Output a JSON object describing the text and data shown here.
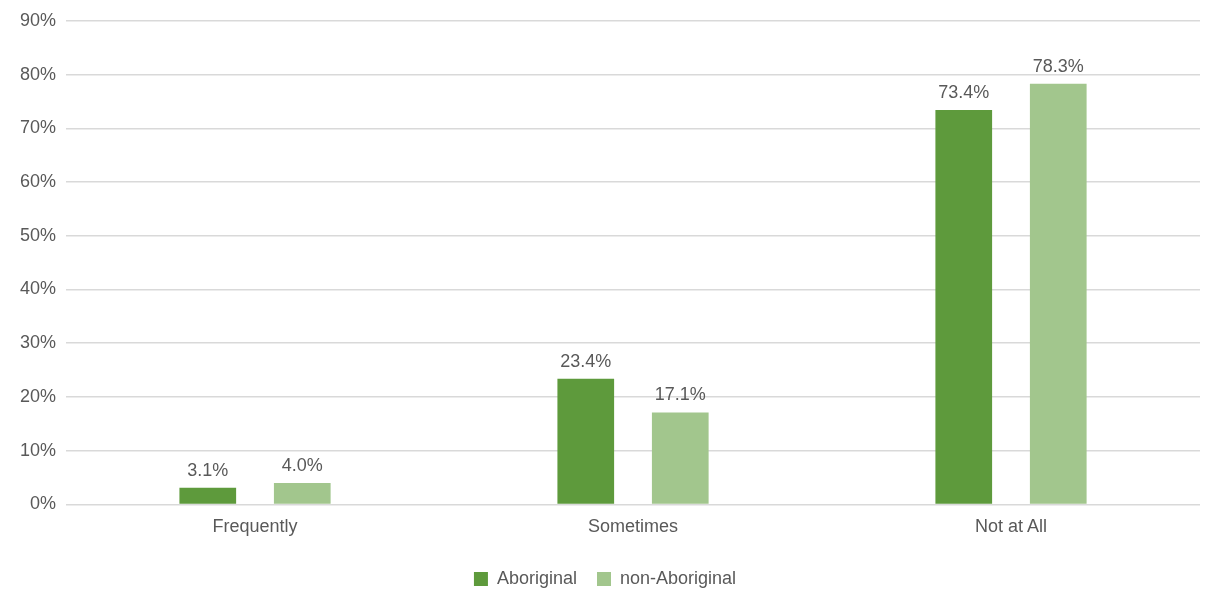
{
  "chart_data": {
    "type": "bar",
    "categories": [
      "Frequently",
      "Sometimes",
      "Not at All"
    ],
    "series": [
      {
        "name": "Aboriginal",
        "color": "#5e9a3c",
        "values": [
          3.1,
          23.4,
          73.4
        ],
        "value_labels": [
          "3.1%",
          "23.4%",
          "73.4%"
        ]
      },
      {
        "name": "non-Aboriginal",
        "color": "#a2c68d",
        "values": [
          4.0,
          17.1,
          78.3
        ],
        "value_labels": [
          "4.0%",
          "17.1%",
          "78.3%"
        ]
      }
    ],
    "ylim": [
      0,
      90
    ],
    "yticks": [
      {
        "value": 0,
        "label": "0%"
      },
      {
        "value": 10,
        "label": "10%"
      },
      {
        "value": 20,
        "label": "20%"
      },
      {
        "value": 30,
        "label": "30%"
      },
      {
        "value": 40,
        "label": "40%"
      },
      {
        "value": 50,
        "label": "50%"
      },
      {
        "value": 60,
        "label": "60%"
      },
      {
        "value": 70,
        "label": "70%"
      },
      {
        "value": 80,
        "label": "80%"
      },
      {
        "value": 90,
        "label": "90%"
      }
    ],
    "grid": "y",
    "legend": "bottom"
  }
}
